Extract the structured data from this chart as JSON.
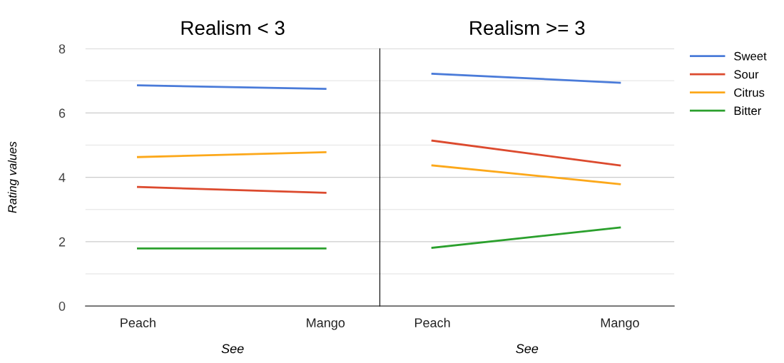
{
  "chart_data": [
    {
      "type": "line",
      "title": "Realism < 3",
      "xlabel": "See",
      "ylabel": "Rating values",
      "categories": [
        "Peach",
        "Mango"
      ],
      "series": [
        {
          "color": "#4a7bd9",
          "values": [
            6.86,
            6.75
          ]
        },
        {
          "color": "#dc4a2e",
          "values": [
            3.7,
            3.52
          ]
        },
        {
          "color": "#fca81a",
          "values": [
            4.63,
            4.78
          ]
        },
        {
          "color": "#2ba02d",
          "values": [
            1.79,
            1.79
          ]
        }
      ],
      "ylim": [
        0,
        8
      ],
      "yticks": [
        0,
        {
          "value": 1,
          "label": null
        },
        2,
        {
          "value": 3,
          "label": null
        },
        4,
        {
          "value": 5,
          "label": null
        },
        6,
        {
          "value": 7,
          "label": null
        },
        8
      ],
      "grid": "y",
      "legend": false
    },
    {
      "type": "line",
      "title": "Realism >= 3",
      "xlabel": "See",
      "categories": [
        "Peach",
        "Mango"
      ],
      "series": [
        {
          "name": "Sweet",
          "color": "#4a7bd9",
          "values": [
            7.22,
            6.94
          ]
        },
        {
          "name": "Sour",
          "color": "#dc4a2e",
          "values": [
            5.14,
            4.37
          ]
        },
        {
          "name": "Citrus",
          "color": "#fca81a",
          "values": [
            4.37,
            3.79
          ]
        },
        {
          "name": "Bitter",
          "color": "#2ba02d",
          "values": [
            1.81,
            2.44
          ]
        }
      ],
      "ylim": [
        0,
        8
      ],
      "yticks": [
        0,
        {
          "value": 1,
          "label": null
        },
        2,
        {
          "value": 3,
          "label": null
        },
        4,
        {
          "value": 5,
          "label": null
        },
        6,
        {
          "value": 7,
          "label": null
        },
        8
      ],
      "grid": "y",
      "legend": "right",
      "tick_labels": "x"
    }
  ]
}
